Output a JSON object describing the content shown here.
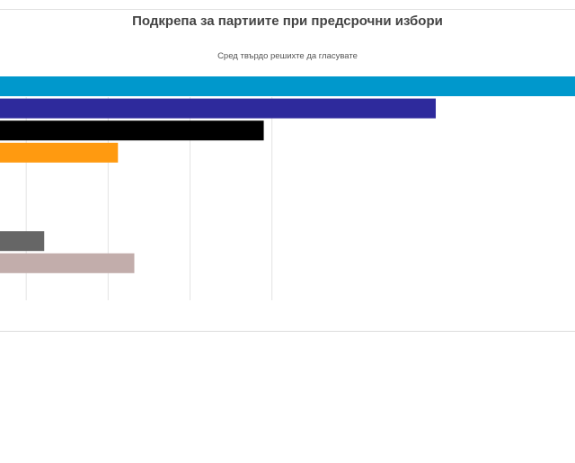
{
  "chart_data": {
    "type": "bar",
    "orientation": "horizontal",
    "title": "Подкрепа за партиите при предсрочни избори",
    "subtitle": "Сред твърдо решихте да гласувате",
    "categories": [
      "",
      "",
      "",
      "",
      "",
      "",
      "",
      "",
      ""
    ],
    "values": [
      33.5,
      25,
      14.5,
      5.6,
      0,
      0,
      0,
      1.1,
      6.6
    ],
    "colors": [
      "#0098cc",
      "#2e2a9c",
      "#000000",
      "#ff9a10",
      "#cccccc",
      "#cccccc",
      "#cccccc",
      "#666666",
      "#c2adab"
    ],
    "xlim": [
      -1.6,
      33.5
    ],
    "gridlines": [
      0,
      5,
      10,
      15
    ],
    "grid": true,
    "legend": "none"
  }
}
